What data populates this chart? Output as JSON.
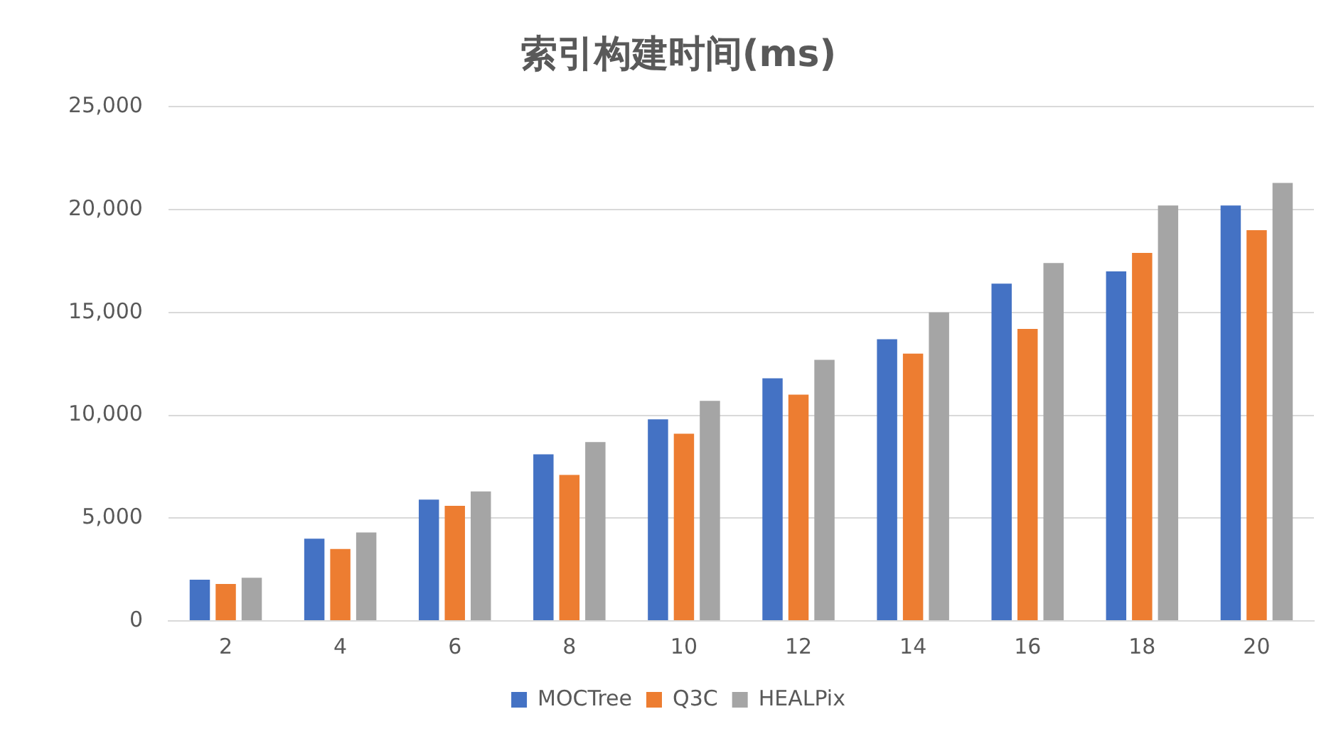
{
  "chart_data": {
    "type": "bar",
    "title": "索引构建时间(ms)",
    "categories": [
      "2",
      "4",
      "6",
      "8",
      "10",
      "12",
      "14",
      "16",
      "18",
      "20"
    ],
    "series": [
      {
        "name": "MOCTree",
        "color": "#4472c4",
        "values": [
          2000,
          4000,
          5900,
          8100,
          9800,
          11800,
          13700,
          16400,
          17000,
          20200
        ]
      },
      {
        "name": "Q3C",
        "color": "#ed7d31",
        "values": [
          1800,
          3500,
          5600,
          7100,
          9100,
          11000,
          13000,
          14200,
          17900,
          19000
        ]
      },
      {
        "name": "HEALPix",
        "color": "#a5a5a5",
        "values": [
          2100,
          4300,
          6300,
          8700,
          10700,
          12700,
          15000,
          17400,
          20200,
          21300
        ]
      }
    ],
    "ylim": [
      0,
      25000
    ],
    "yticks": [
      {
        "value": 0,
        "label": "0"
      },
      {
        "value": 5000,
        "label": "5,000"
      },
      {
        "value": 10000,
        "label": "10,000"
      },
      {
        "value": 15000,
        "label": "15,000"
      },
      {
        "value": 20000,
        "label": "20,000"
      },
      {
        "value": 25000,
        "label": "25,000"
      }
    ],
    "grid": "y",
    "legend": "bottom"
  }
}
